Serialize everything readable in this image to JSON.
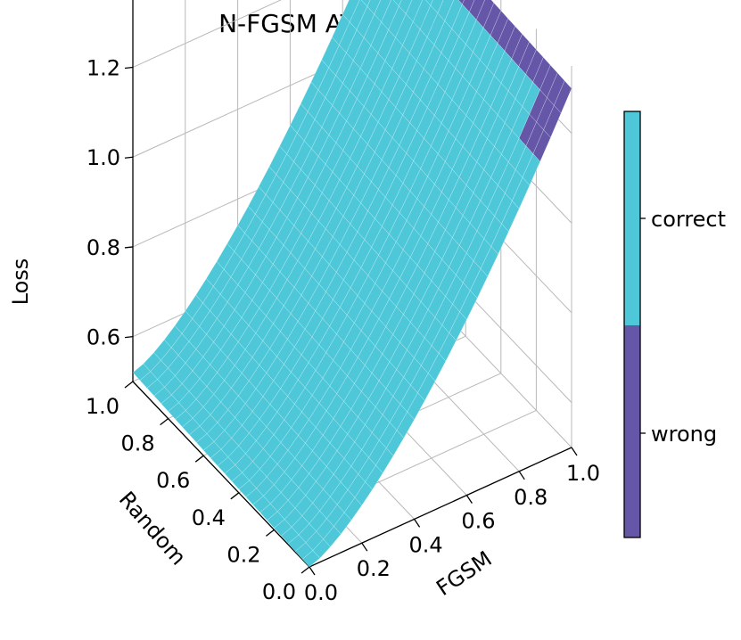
{
  "chart_data": {
    "type": "surface3d",
    "title": "N-FGSM AT model",
    "xlabel": "FGSM",
    "ylabel": "Random",
    "zlabel": "Loss",
    "x_ticks": [
      "0.0",
      "0.2",
      "0.4",
      "0.6",
      "0.8",
      "1.0"
    ],
    "y_ticks": [
      "0.0",
      "0.2",
      "0.4",
      "0.6",
      "0.8",
      "1.0"
    ],
    "z_ticks": [
      "0.6",
      "0.8",
      "1.0",
      "1.2"
    ],
    "xlim": [
      0,
      1
    ],
    "ylim": [
      0,
      1
    ],
    "zlim": [
      0.5,
      1.35
    ],
    "grid": true,
    "surface": {
      "description": "Loss rises with FGSM step, nearly flat along Random",
      "loss_at_fgsm_0": 0.5,
      "loss_at_fgsm_1": 1.3,
      "curve_exponent": 1.4,
      "random_slope": 0.02,
      "wrong_region": "top edge near FGSM = 1.0 (largest FGSM, all Random values), widening slightly at low Random"
    },
    "colorbar": {
      "labels": [
        "correct",
        "wrong"
      ],
      "colors": {
        "correct": "#4ec8d8",
        "wrong": "#6556a8"
      }
    }
  }
}
